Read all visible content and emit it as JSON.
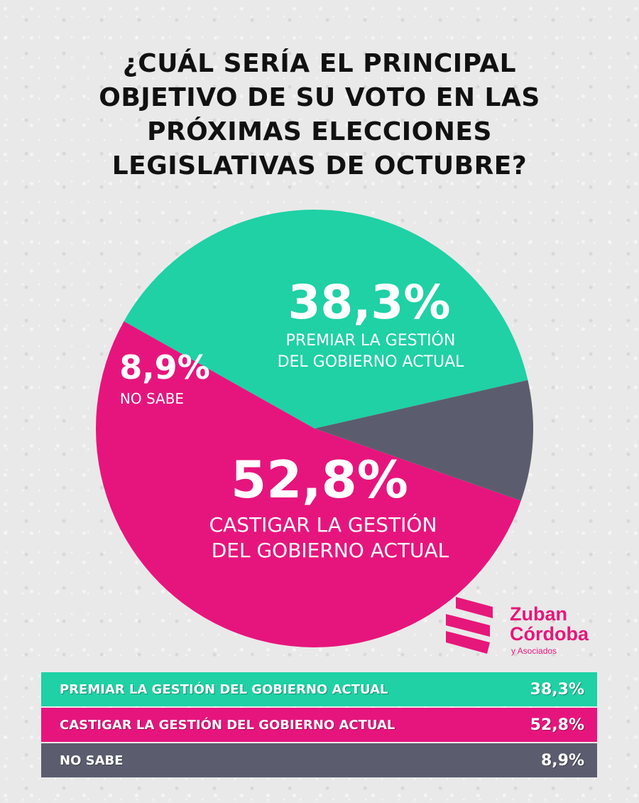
{
  "title_lines": [
    "¿CUÁL SERÍA EL PRINCIPAL",
    "OBJETIVO DE SU VOTO EN LAS",
    "PRÓXIMAS ELECCIONES",
    "LEGISLATIVAS DE OCTUBRE?"
  ],
  "chart_data": {
    "type": "pie",
    "slices": [
      {
        "label_lines": [
          "PREMIAR LA GESTIÓN",
          "DEL GOBIERNO ACTUAL"
        ],
        "value": 38.3,
        "value_text": "38,3%",
        "color": "#1fd1a5"
      },
      {
        "label_lines": [
          "CASTIGAR LA GESTIÓN",
          "DEL GOBIERNO ACTUAL"
        ],
        "value": 52.8,
        "value_text": "52,8%",
        "color": "#e6157d"
      },
      {
        "label_lines": [
          "NO SABE"
        ],
        "value": 8.9,
        "value_text": "8,9%",
        "color": "#5b5d6e"
      }
    ]
  },
  "table": [
    {
      "label": "PREMIAR LA GESTIÓN DEL GOBIERNO ACTUAL",
      "value": "38,3%",
      "color": "#1fd1a5"
    },
    {
      "label": "CASTIGAR  LA GESTIÓN DEL GOBIERNO ACTUAL",
      "value": "52,8%",
      "color": "#e6157d"
    },
    {
      "label": "NO SABE",
      "value": "8,9%",
      "color": "#5b5d6e"
    }
  ],
  "logo": {
    "name_line1": "Zuban",
    "name_line2": "Córdoba",
    "sub": "y Asociados",
    "icon": "zuban-cordoba-logo-mark",
    "color": "#e6177a"
  }
}
